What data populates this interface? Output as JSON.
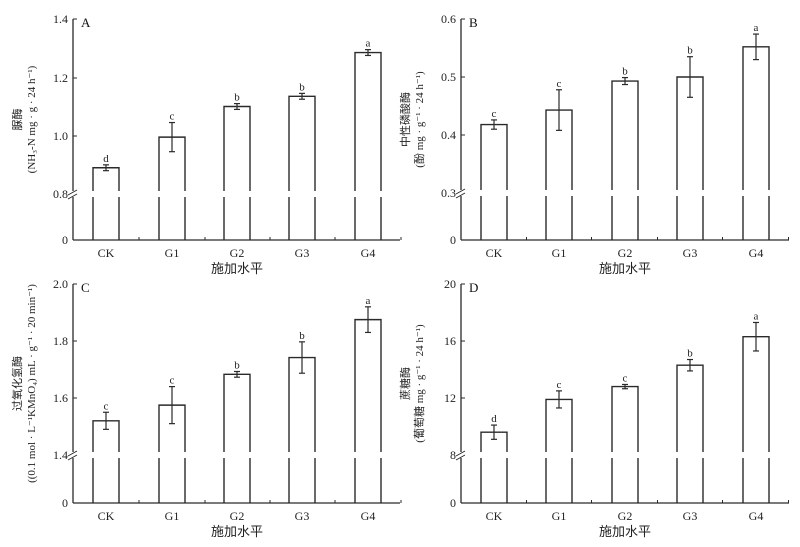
{
  "chart_data": [
    {
      "panel": "A",
      "type": "bar",
      "title": "",
      "categories": [
        "CK",
        "G1",
        "G2",
        "G3",
        "G4"
      ],
      "values": [
        0.89,
        0.995,
        1.1,
        1.135,
        1.285
      ],
      "errors": [
        0.01,
        0.05,
        0.01,
        0.01,
        0.01
      ],
      "significance": [
        "d",
        "c",
        "b",
        "b",
        "a"
      ],
      "xlabel": "施加水平",
      "ylabel_line1": "脲酶",
      "ylabel_line2": "(NH₃-N mg · g · 24 h⁻¹)",
      "yticks": [
        "0",
        "0.8",
        "1.0",
        "1.2",
        "1.4"
      ],
      "ylim": [
        0.8,
        1.4
      ],
      "axis_break": true,
      "grid": false
    },
    {
      "panel": "B",
      "type": "bar",
      "title": "",
      "categories": [
        "CK",
        "G1",
        "G2",
        "G3",
        "G4"
      ],
      "values": [
        0.418,
        0.443,
        0.493,
        0.5,
        0.552
      ],
      "errors": [
        0.008,
        0.035,
        0.006,
        0.035,
        0.022
      ],
      "significance": [
        "c",
        "c",
        "b",
        "b",
        "a"
      ],
      "xlabel": "施加水平",
      "ylabel_line1": "中性磷酸酶",
      "ylabel_line2": "(酚 mg · g⁻¹ · 24 h⁻¹)",
      "yticks": [
        "0",
        "0.3",
        "0.4",
        "0.5",
        "0.6"
      ],
      "ylim": [
        0.3,
        0.6
      ],
      "axis_break": true,
      "grid": false
    },
    {
      "panel": "C",
      "type": "bar",
      "title": "",
      "categories": [
        "CK",
        "G1",
        "G2",
        "G3",
        "G4"
      ],
      "values": [
        1.52,
        1.575,
        1.683,
        1.742,
        1.875
      ],
      "errors": [
        0.03,
        0.065,
        0.01,
        0.055,
        0.045
      ],
      "significance": [
        "c",
        "c",
        "b",
        "b",
        "a"
      ],
      "xlabel": "施加水平",
      "ylabel_line1": "过氧化氢酶",
      "ylabel_line2": "((0.1 mol · L⁻¹KMnO₄) mL · g⁻¹ · 20 min⁻¹)",
      "yticks": [
        "0",
        "1.4",
        "1.6",
        "1.8",
        "2.0"
      ],
      "ylim": [
        1.4,
        2.0
      ],
      "axis_break": true,
      "grid": false
    },
    {
      "panel": "D",
      "type": "bar",
      "title": "",
      "categories": [
        "CK",
        "G1",
        "G2",
        "G3",
        "G4"
      ],
      "values": [
        9.6,
        11.9,
        12.8,
        14.3,
        16.3
      ],
      "errors": [
        0.5,
        0.6,
        0.15,
        0.4,
        1.0
      ],
      "significance": [
        "d",
        "c",
        "c",
        "b",
        "a"
      ],
      "xlabel": "施加水平",
      "ylabel_line1": "蔗糖酶",
      "ylabel_line2": "(葡萄糖 mg · g⁻¹ · 24 h⁻¹)",
      "yticks": [
        "0",
        "8",
        "12",
        "16",
        "20"
      ],
      "ylim": [
        8,
        20
      ],
      "axis_break": true,
      "grid": false
    }
  ]
}
